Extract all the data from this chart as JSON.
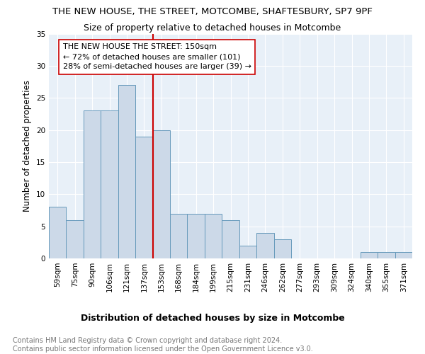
{
  "title": "THE NEW HOUSE, THE STREET, MOTCOMBE, SHAFTESBURY, SP7 9PF",
  "subtitle": "Size of property relative to detached houses in Motcombe",
  "xlabel": "Distribution of detached houses by size in Motcombe",
  "ylabel": "Number of detached properties",
  "categories": [
    "59sqm",
    "75sqm",
    "90sqm",
    "106sqm",
    "121sqm",
    "137sqm",
    "153sqm",
    "168sqm",
    "184sqm",
    "199sqm",
    "215sqm",
    "231sqm",
    "246sqm",
    "262sqm",
    "277sqm",
    "293sqm",
    "309sqm",
    "324sqm",
    "340sqm",
    "355sqm",
    "371sqm"
  ],
  "values": [
    8,
    6,
    23,
    23,
    27,
    19,
    20,
    7,
    7,
    7,
    6,
    2,
    4,
    3,
    0,
    0,
    0,
    0,
    1,
    1,
    1
  ],
  "bar_color": "#ccd9e8",
  "bar_edge_color": "#6699bb",
  "vline_x_pos": 5.5,
  "vline_color": "#cc0000",
  "annotation_text": "THE NEW HOUSE THE STREET: 150sqm\n← 72% of detached houses are smaller (101)\n28% of semi-detached houses are larger (39) →",
  "annotation_box_color": "white",
  "annotation_box_edge": "#cc0000",
  "ylim": [
    0,
    35
  ],
  "yticks": [
    0,
    5,
    10,
    15,
    20,
    25,
    30,
    35
  ],
  "footer_text": "Contains HM Land Registry data © Crown copyright and database right 2024.\nContains public sector information licensed under the Open Government Licence v3.0.",
  "background_color": "#e8f0f8",
  "grid_color": "white",
  "title_fontsize": 9.5,
  "subtitle_fontsize": 9,
  "xlabel_fontsize": 9,
  "ylabel_fontsize": 8.5,
  "tick_fontsize": 7.5,
  "footer_fontsize": 7,
  "ann_fontsize": 8
}
